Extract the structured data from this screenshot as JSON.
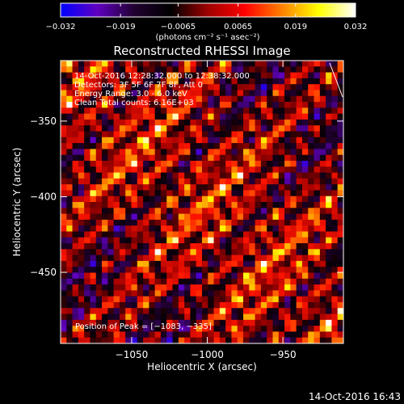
{
  "chart_data": {
    "type": "heatmap",
    "title": "Reconstructed RHESSI Image",
    "xlabel": "Heliocentric X (arcsec)",
    "ylabel": "Heliocentric Y (arcsec)",
    "xlim": [
      -1097,
      -910
    ],
    "ylim": [
      -497,
      -310
    ],
    "x_ticks": [
      -1050,
      -1000,
      -950
    ],
    "x_tick_labels": [
      "−1050",
      "−1000",
      "−950"
    ],
    "y_ticks": [
      -450,
      -400,
      -350
    ],
    "y_tick_labels": [
      "−450",
      "−400",
      "−350"
    ],
    "colorbar": {
      "range": [
        -0.032,
        0.032
      ],
      "ticks": [
        -0.032,
        -0.019,
        -0.0065,
        0.0065,
        0.019,
        0.032
      ],
      "tick_labels": [
        "−0.032",
        "−0.019",
        "−0.0065",
        "0.0065",
        "0.019",
        "0.032"
      ],
      "unit_label": "(photons cm⁻² s⁻¹ asec⁻²)",
      "colors": [
        "#0000ff",
        "#6000c0",
        "#200030",
        "#000000",
        "#a00000",
        "#ff0000",
        "#ff8000",
        "#ffff00",
        "#ffffff"
      ]
    },
    "annotations": [
      "14-Oct-2016 12:28:32.000 to 12:38:32.000",
      "Detectors: 3F 5F 6F 7F 8F, Att 0",
      "Energy Range: 3.0 - 6.0 keV",
      "Clean   Total counts: 6.16E+03"
    ],
    "peak_label": "Position of Peak = [−1083, −335]",
    "grid_resolution": 48
  },
  "timestamp": "14-Oct-2016 16:43"
}
